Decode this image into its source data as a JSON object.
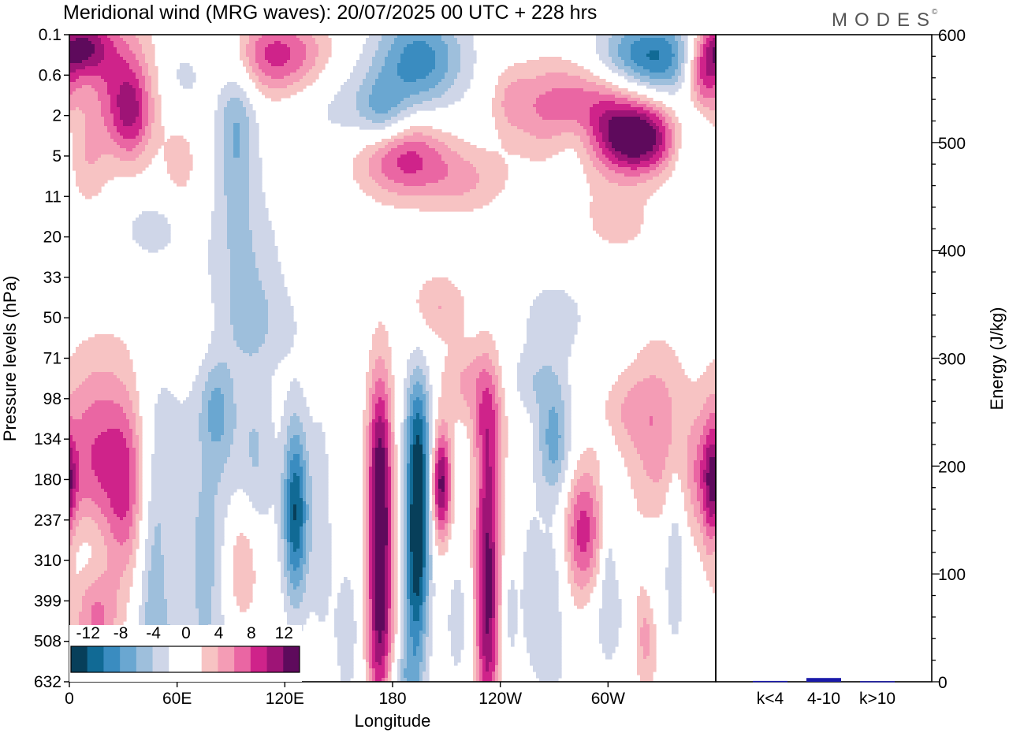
{
  "title": "Meridional wind (MRG waves):  20/07/2025  00 UTC  + 228 hrs",
  "logo": "MODES",
  "logo_mark": "©",
  "colors": {
    "neg": [
      "#073f5a",
      "#116a95",
      "#3a8cc0",
      "#6aa7d1",
      "#9ebfdc",
      "#cfd6e8"
    ],
    "pos": [
      "#f7c3c3",
      "#f49cb5",
      "#ea66a3",
      "#cf238a",
      "#9e1476",
      "#5e0a5c"
    ],
    "bar": "#1a1aaa"
  },
  "chart_data": [
    {
      "type": "heatmap",
      "title": "Meridional wind (MRG waves):  20/07/2025  00 UTC  + 228 hrs",
      "xlabel": "Longitude",
      "ylabel": "Pressure levels (hPa)",
      "x_ticks": [
        "0",
        "60E",
        "120E",
        "180",
        "120W",
        "60W"
      ],
      "x_tick_values_deg": [
        0,
        60,
        120,
        180,
        240,
        300
      ],
      "xlim_deg": [
        0,
        360
      ],
      "y_levels": [
        "0.1",
        "0.6",
        "2",
        "5",
        "11",
        "20",
        "33",
        "50",
        "71",
        "98",
        "134",
        "180",
        "237",
        "310",
        "399",
        "508",
        "632"
      ],
      "colorbar": {
        "levels": [
          -12,
          -10,
          -8,
          -6,
          -4,
          -2,
          0,
          2,
          4,
          6,
          8,
          10,
          12
        ],
        "labels": [
          "-12",
          "-8",
          "-4",
          "0",
          "4",
          "8",
          "12"
        ]
      },
      "contour_blobs": [
        {
          "lon": 6,
          "lev": 0.3,
          "sx": 10,
          "sy": 0.5,
          "amp": 11
        },
        {
          "lon": 25,
          "lev": 1.0,
          "sx": 14,
          "sy": 1.3,
          "amp": 7
        },
        {
          "lon": 35,
          "lev": 2.0,
          "sx": 8,
          "sy": 0.8,
          "amp": 7
        },
        {
          "lon": 10,
          "lev": 3.2,
          "sx": 8,
          "sy": 0.8,
          "amp": 3
        },
        {
          "lon": 62,
          "lev": 3.2,
          "sx": 8,
          "sy": 0.8,
          "amp": 3
        },
        {
          "lon": 115,
          "lev": 0.5,
          "sx": 20,
          "sy": 0.7,
          "amp": 9
        },
        {
          "lon": 65,
          "lev": 1.0,
          "sx": 8,
          "sy": 0.5,
          "amp": -3
        },
        {
          "lon": 93,
          "lev": 2.2,
          "sx": 8,
          "sy": 1.6,
          "amp": -6
        },
        {
          "lon": 155,
          "lev": 1.8,
          "sx": 20,
          "sy": 0.8,
          "amp": -3
        },
        {
          "lon": 175,
          "lev": 2.0,
          "sx": 10,
          "sy": 0.6,
          "amp": -5
        },
        {
          "lon": 185,
          "lev": 3.0,
          "sx": 18,
          "sy": 0.7,
          "amp": 9
        },
        {
          "lon": 195,
          "lev": 0.6,
          "sx": 18,
          "sy": 0.9,
          "amp": -9
        },
        {
          "lon": 220,
          "lev": 3.6,
          "sx": 18,
          "sy": 0.6,
          "amp": 4
        },
        {
          "lon": 245,
          "lev": 1.6,
          "sx": 8,
          "sy": 0.6,
          "amp": 3
        },
        {
          "lon": 265,
          "lev": 1.8,
          "sx": 15,
          "sy": 0.8,
          "amp": 4
        },
        {
          "lon": 298,
          "lev": 1.9,
          "sx": 22,
          "sy": 1.0,
          "amp": 9
        },
        {
          "lon": 318,
          "lev": 2.6,
          "sx": 15,
          "sy": 0.6,
          "amp": 11
        },
        {
          "lon": 322,
          "lev": 0.6,
          "sx": 22,
          "sy": 0.7,
          "amp": -12
        },
        {
          "lon": 282,
          "lev": 2.6,
          "sx": 10,
          "sy": 0.6,
          "amp": -4
        },
        {
          "lon": 353,
          "lev": 1.0,
          "sx": 8,
          "sy": 0.7,
          "amp": 11
        },
        {
          "lon": 347,
          "lev": 2.5,
          "sx": 8,
          "sy": 1.0,
          "amp": -4
        },
        {
          "lon": 45,
          "lev": 4.8,
          "sx": 12,
          "sy": 0.5,
          "amp": -3
        },
        {
          "lon": 100,
          "lev": 5.6,
          "sx": 15,
          "sy": 1.4,
          "amp": -3
        },
        {
          "lon": 100,
          "lev": 7.2,
          "sx": 22,
          "sy": 0.8,
          "amp": -3
        },
        {
          "lon": 270,
          "lev": 7.0,
          "sx": 15,
          "sy": 0.8,
          "amp": -3
        },
        {
          "lon": 70,
          "lev": 7.2,
          "sx": 22,
          "sy": 0.8,
          "amp": 3
        },
        {
          "lon": 205,
          "lev": 6.7,
          "sx": 12,
          "sy": 0.6,
          "amp": 4
        },
        {
          "lon": 305,
          "lev": 4.6,
          "sx": 14,
          "sy": 0.6,
          "amp": 3
        },
        {
          "lon": 15,
          "lev": 10.5,
          "sx": 15,
          "sy": 1.8,
          "amp": 8
        },
        {
          "lon": 33,
          "lev": 11.3,
          "sx": 8,
          "sy": 1.6,
          "amp": 6
        },
        {
          "lon": 50,
          "lev": 11.0,
          "sx": 10,
          "sy": 3.0,
          "amp": -3
        },
        {
          "lon": 85,
          "lev": 10.5,
          "sx": 15,
          "sy": 3.5,
          "amp": -3
        },
        {
          "lon": 82,
          "lev": 9.3,
          "sx": 6,
          "sy": 0.8,
          "amp": -4
        },
        {
          "lon": 105,
          "lev": 10.5,
          "sx": 7,
          "sy": 1.6,
          "amp": -3
        },
        {
          "lon": 126,
          "lev": 11.8,
          "sx": 5,
          "sy": 1.6,
          "amp": -12
        },
        {
          "lon": 96,
          "lev": 13.1,
          "sx": 7,
          "sy": 1.1,
          "amp": 6
        },
        {
          "lon": 15,
          "lev": 14.5,
          "sx": 9,
          "sy": 1.0,
          "amp": 6
        },
        {
          "lon": 75,
          "lev": 14.0,
          "sx": 8,
          "sy": 2.5,
          "amp": -3
        },
        {
          "lon": 140,
          "lev": 12.0,
          "sx": 5,
          "sy": 2.5,
          "amp": -3
        },
        {
          "lon": 173,
          "lev": 12.6,
          "sx": 5,
          "sy": 2.5,
          "amp": 14
        },
        {
          "lon": 173,
          "lev": 10.0,
          "sx": 5,
          "sy": 1.5,
          "amp": 4
        },
        {
          "lon": 173,
          "lev": 15.8,
          "sx": 6,
          "sy": 1.5,
          "amp": 4
        },
        {
          "lon": 194,
          "lev": 11.7,
          "sx": 5,
          "sy": 2.0,
          "amp": -14
        },
        {
          "lon": 192,
          "lev": 14.5,
          "sx": 5,
          "sy": 1.5,
          "amp": -5
        },
        {
          "lon": 195,
          "lev": 9.5,
          "sx": 6,
          "sy": 1.0,
          "amp": -3
        },
        {
          "lon": 207,
          "lev": 11.1,
          "sx": 4,
          "sy": 1.0,
          "amp": 13
        },
        {
          "lon": 233,
          "lev": 12.6,
          "sx": 5,
          "sy": 2.5,
          "amp": 11
        },
        {
          "lon": 234,
          "lev": 9.5,
          "sx": 7,
          "sy": 1.0,
          "amp": 4
        },
        {
          "lon": 233,
          "lev": 15.5,
          "sx": 5,
          "sy": 1.8,
          "amp": 5
        },
        {
          "lon": 220,
          "lev": 8.6,
          "sx": 10,
          "sy": 0.7,
          "amp": 4
        },
        {
          "lon": 270,
          "lev": 10.1,
          "sx": 7,
          "sy": 1.1,
          "amp": -7
        },
        {
          "lon": 270,
          "lev": 13.3,
          "sx": 6,
          "sy": 1.0,
          "amp": -3
        },
        {
          "lon": 257,
          "lev": 13.7,
          "sx": 4,
          "sy": 1.5,
          "amp": -3
        },
        {
          "lon": 245,
          "lev": 14.3,
          "sx": 4,
          "sy": 1.2,
          "amp": -3
        },
        {
          "lon": 258,
          "lev": 8.6,
          "sx": 10,
          "sy": 0.6,
          "amp": -3
        },
        {
          "lon": 286,
          "lev": 12.3,
          "sx": 8,
          "sy": 1.2,
          "amp": 9
        },
        {
          "lon": 300,
          "lev": 12.5,
          "sx": 3,
          "sy": 1.5,
          "amp": -3
        },
        {
          "lon": 328,
          "lev": 10.0,
          "sx": 12,
          "sy": 1.8,
          "amp": 5
        },
        {
          "lon": 352,
          "lev": 10.9,
          "sx": 6,
          "sy": 1.0,
          "amp": 4
        },
        {
          "lon": 310,
          "lev": 9.3,
          "sx": 12,
          "sy": 0.7,
          "amp": 3
        },
        {
          "lon": 337,
          "lev": 12.9,
          "sx": 4,
          "sy": 1.5,
          "amp": -5
        },
        {
          "lon": 325,
          "lev": 13.9,
          "sx": 4,
          "sy": 1.2,
          "amp": -3
        },
        {
          "lon": 300,
          "lev": 14.3,
          "sx": 8,
          "sy": 1.0,
          "amp": -3
        },
        {
          "lon": 322,
          "lev": 14.8,
          "sx": 5,
          "sy": 1.0,
          "amp": 6
        },
        {
          "lon": 12,
          "lev": 12.7,
          "sx": 8,
          "sy": 0.8,
          "amp": -3
        },
        {
          "lon": 45,
          "lev": 13.0,
          "sx": 6,
          "sy": 2.0,
          "amp": -3
        },
        {
          "lon": 50,
          "lev": 15.3,
          "sx": 8,
          "sy": 1.0,
          "amp": -3
        },
        {
          "lon": 155,
          "lev": 14.8,
          "sx": 6,
          "sy": 1.5,
          "amp": -3
        },
        {
          "lon": 185,
          "lev": 15.9,
          "sx": 7,
          "sy": 0.5,
          "amp": -4
        },
        {
          "lon": 216,
          "lev": 14.5,
          "sx": 5,
          "sy": 1.2,
          "amp": -3
        },
        {
          "lon": 268,
          "lev": 15.5,
          "sx": 6,
          "sy": 1.0,
          "amp": -3
        },
        {
          "lon": 1,
          "lev": 11.1,
          "sx": 3,
          "sy": 0.8,
          "amp": 4
        },
        {
          "lon": 357,
          "lev": 11.3,
          "sx": 3,
          "sy": 1.2,
          "amp": 5
        }
      ]
    },
    {
      "type": "bar",
      "categories": [
        "k<4",
        "4-10",
        "k>10"
      ],
      "values": [
        0.8,
        3.5,
        0.6
      ],
      "ylabel": "Energy (J/kg)",
      "ylim": [
        0,
        600
      ],
      "y_ticks": [
        0,
        100,
        200,
        300,
        400,
        500,
        600
      ]
    }
  ]
}
